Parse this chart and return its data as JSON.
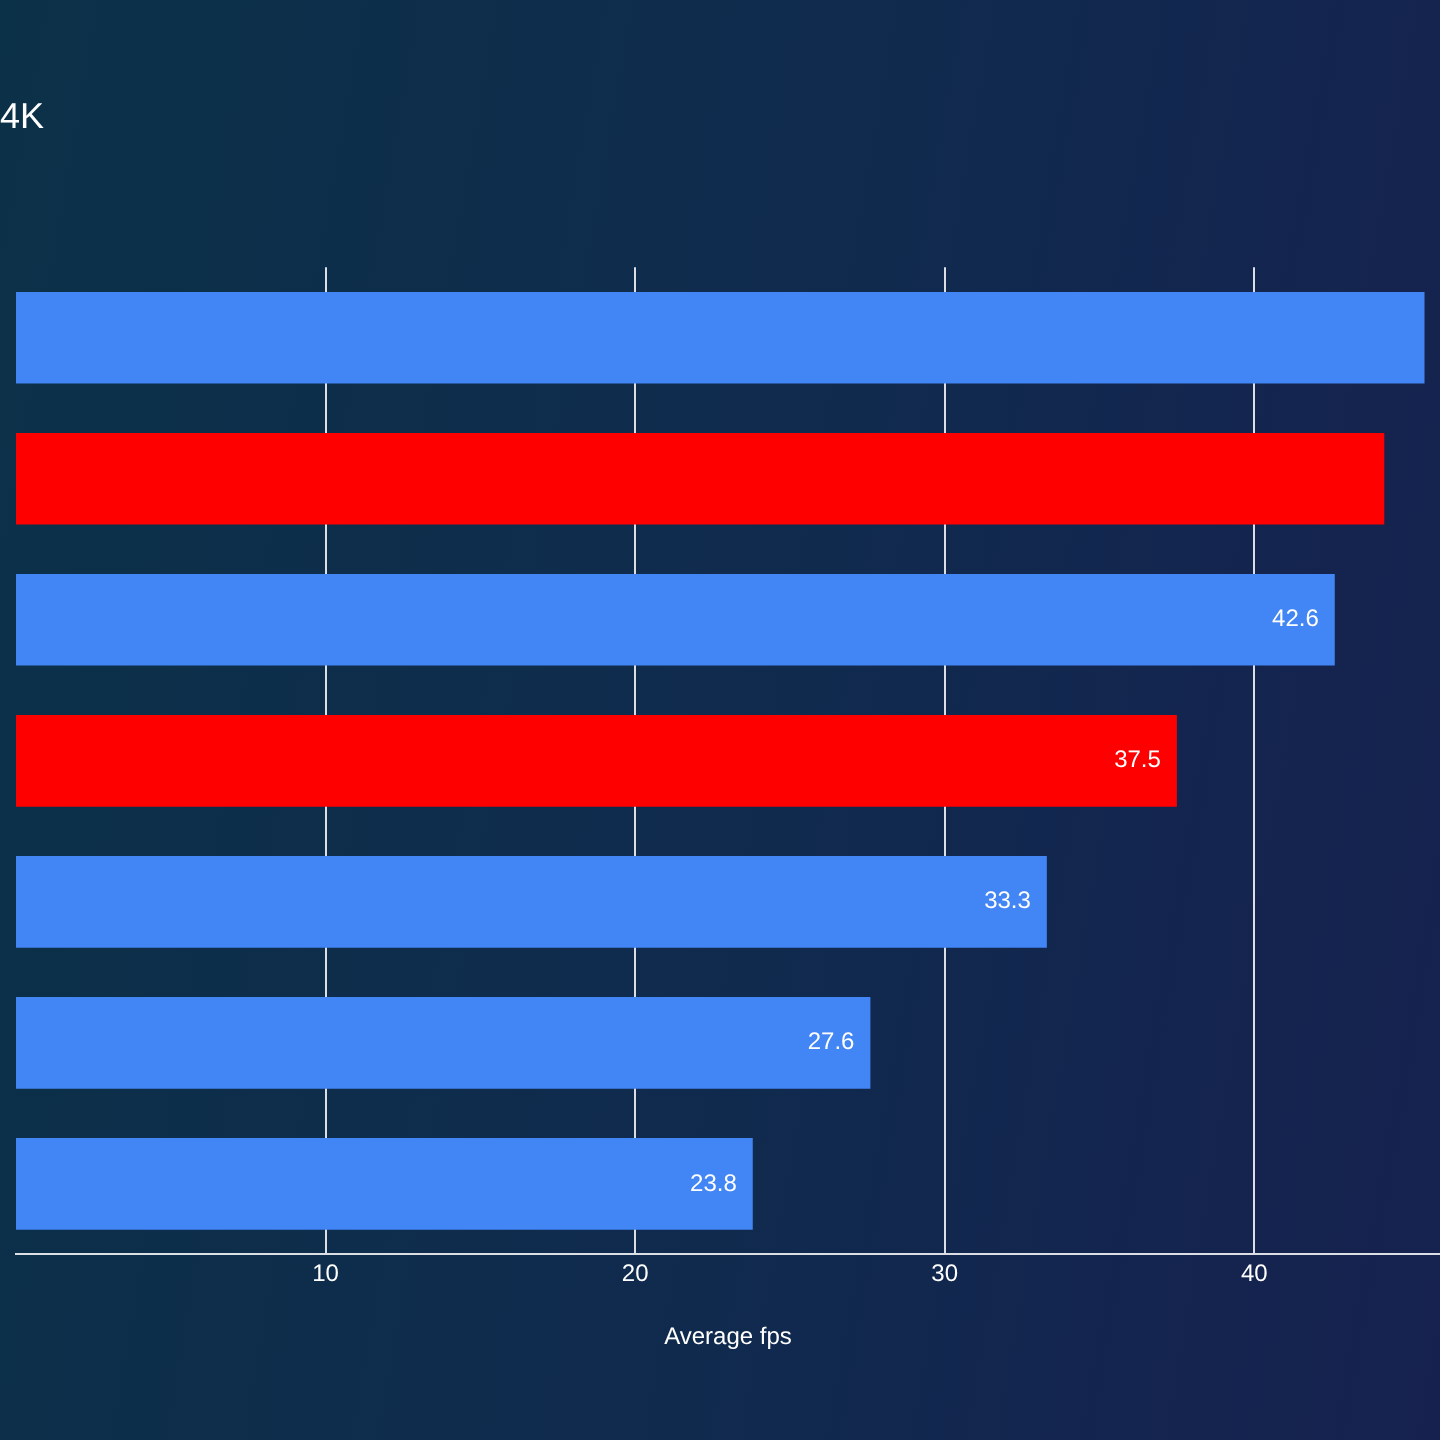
{
  "chart_data": {
    "type": "bar",
    "orientation": "horizontal",
    "title": "4K",
    "xlabel": "Average fps",
    "categories": [
      null,
      null,
      null,
      null,
      null,
      null,
      null
    ],
    "values": [
      45.5,
      44.2,
      42.6,
      37.5,
      33.3,
      27.6,
      23.8
    ],
    "colors": [
      "#4285f4",
      "#ff0000",
      "#4285f4",
      "#ff0000",
      "#4285f4",
      "#4285f4",
      "#4285f4"
    ],
    "value_labels": [
      null,
      null,
      "42.6",
      "37.5",
      "33.3",
      "27.6",
      "23.8"
    ],
    "xlim": [
      0,
      46
    ],
    "xticks": [
      10,
      20,
      30,
      40
    ],
    "grid": "x",
    "tick_labels": "x",
    "legend": false
  }
}
